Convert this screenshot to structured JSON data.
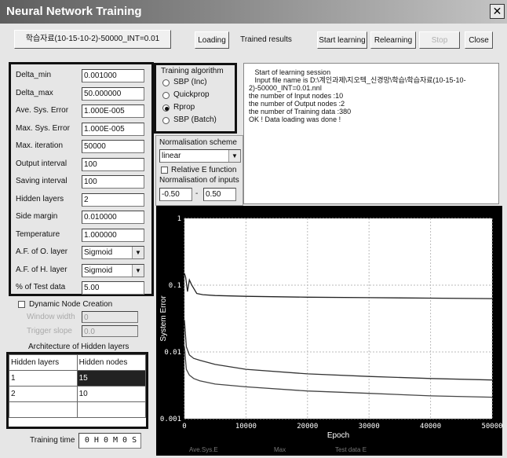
{
  "window": {
    "title": "Neural Network Training",
    "close_glyph": "✕"
  },
  "toolbar": {
    "file_label": "학습자료(10-15-10-2)-50000_INT=0.01",
    "loading": "Loading",
    "trained_results": "Trained results",
    "start_learning": "Start learning",
    "relearning": "Relearning",
    "stop": "Stop",
    "close": "Close"
  },
  "params": [
    {
      "label": "Delta_min",
      "value": "0.001000",
      "kind": "text"
    },
    {
      "label": "Delta_max",
      "value": "50.000000",
      "kind": "text"
    },
    {
      "label": "Ave. Sys. Error",
      "value": "1.000E-005",
      "kind": "text"
    },
    {
      "label": "Max. Sys. Error",
      "value": "1.000E-005",
      "kind": "text"
    },
    {
      "label": "Max. iteration",
      "value": "50000",
      "kind": "text"
    },
    {
      "label": "Output interval",
      "value": "100",
      "kind": "text"
    },
    {
      "label": "Saving interval",
      "value": "100",
      "kind": "text"
    },
    {
      "label": "Hidden layers",
      "value": "2",
      "kind": "text"
    },
    {
      "label": "Side margin",
      "value": "0.010000",
      "kind": "text"
    },
    {
      "label": "Temperature",
      "value": "1.000000",
      "kind": "text"
    },
    {
      "label": "A.F. of O. layer",
      "value": "Sigmoid",
      "kind": "select"
    },
    {
      "label": "A.F. of H. layer",
      "value": "Sigmoid",
      "kind": "select"
    },
    {
      "label": "% of Test data",
      "value": "5.00",
      "kind": "text"
    }
  ],
  "algorithm": {
    "title": "Training algorithm",
    "options": [
      {
        "label": "SBP (Inc)",
        "selected": false
      },
      {
        "label": "Quickprop",
        "selected": false
      },
      {
        "label": "Rprop",
        "selected": true
      },
      {
        "label": "SBP (Batch)",
        "selected": false
      }
    ]
  },
  "normalisation": {
    "scheme_label": "Normalisation scheme",
    "scheme_value": "linear",
    "relative_label": "Relative E function",
    "inputs_label": "Normalisation of inputs",
    "min": "-0.50",
    "dash": "-",
    "max": "0.50"
  },
  "log_lines": [
    "   Start of learning session",
    "   Input file name is D:\\계인과제\\지오텍_신경망\\학습\\학습자료(10-15-10-2)-50000_INT=0.01.nnl",
    "the number of Input nodes :10",
    "the number of Output nodes :2",
    "the number of Training data :380",
    "OK ! Data loading was done !"
  ],
  "dynamic": {
    "label": "Dynamic Node Creation",
    "window_width_label": "Window width",
    "window_width_value": "0",
    "trigger_slope_label": "Trigger slope",
    "trigger_slope_value": "0.0"
  },
  "architecture": {
    "title": "Architecture of Hidden layers",
    "headers": [
      "Hidden layers",
      "Hidden nodes"
    ],
    "rows": [
      [
        "1",
        "15"
      ],
      [
        "2",
        "10"
      ]
    ]
  },
  "training_time": {
    "label": "Training time",
    "value": "0 H 0 M 0 S"
  },
  "chart_labels": {
    "footer_left": "Ave.Sys.E",
    "footer_mid": "Max",
    "footer_right": "Test data E"
  },
  "chart_data": {
    "type": "line",
    "xlabel": "Epoch",
    "ylabel": "System Error",
    "yscale": "log",
    "ylim": [
      0.001,
      1
    ],
    "xlim": [
      0,
      50000
    ],
    "y_ticks": [
      "1",
      "0.1",
      "0.01",
      "0.001"
    ],
    "x_ticks": [
      "0",
      "10000",
      "20000",
      "30000",
      "40000",
      "50000"
    ],
    "series": [
      {
        "x": [
          0,
          200,
          500,
          800,
          1200,
          2000,
          3000,
          5000,
          10000,
          20000,
          30000,
          40000,
          50000
        ],
        "y": [
          0.15,
          0.13,
          0.08,
          0.12,
          0.1,
          0.075,
          0.072,
          0.07,
          0.068,
          0.066,
          0.065,
          0.064,
          0.063
        ]
      },
      {
        "x": [
          0,
          300,
          800,
          1500,
          2500,
          5000,
          10000,
          20000,
          30000,
          40000,
          50000
        ],
        "y": [
          0.03,
          0.012,
          0.009,
          0.008,
          0.0075,
          0.0065,
          0.0055,
          0.0047,
          0.0043,
          0.004,
          0.0038
        ]
      },
      {
        "x": [
          0,
          300,
          800,
          1500,
          2500,
          5000,
          10000,
          20000,
          30000,
          40000,
          50000
        ],
        "y": [
          0.012,
          0.0055,
          0.0045,
          0.004,
          0.0037,
          0.0033,
          0.003,
          0.0026,
          0.0024,
          0.0022,
          0.0021
        ]
      }
    ]
  }
}
